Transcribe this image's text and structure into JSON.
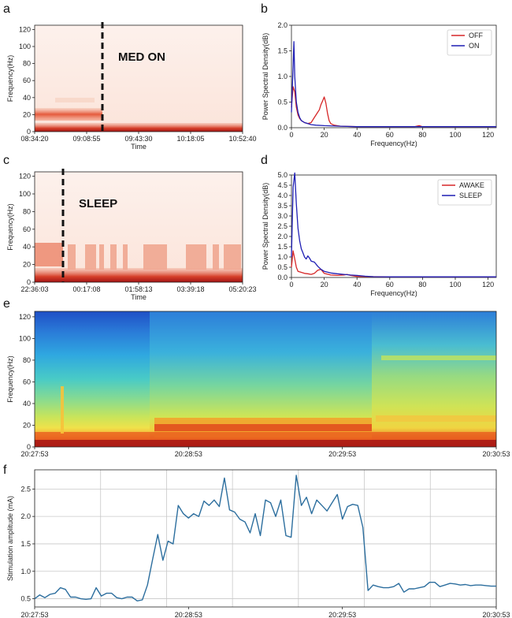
{
  "panels": {
    "a": {
      "label": "a",
      "type": "spectrogram",
      "annotation": "MED ON",
      "xlabel": "Time",
      "ylabel": "Frequency(Hz)",
      "xticks": [
        "08:34:20",
        "09:08:55",
        "09:43:30",
        "10:18:05",
        "10:52:40"
      ],
      "yticks": [
        0,
        20,
        40,
        60,
        80,
        100,
        120
      ],
      "ylim": [
        0,
        125
      ],
      "event_time_fraction": 0.33,
      "colormap": "reds"
    },
    "b": {
      "label": "b",
      "chart_data": {
        "type": "line",
        "xlabel": "Frequency(Hz)",
        "ylabel": "Power Spectral Density(dB)",
        "xlim": [
          0,
          125
        ],
        "ylim": [
          0,
          2.0
        ],
        "xticks": [
          0,
          20,
          40,
          60,
          80,
          100,
          120
        ],
        "yticks": [
          "0.0",
          "0.5",
          "1.0",
          "1.5",
          "2.0"
        ],
        "legend_position": "top-right",
        "series": [
          {
            "name": "OFF",
            "color": "#d62728",
            "x": [
              0,
              1,
              2,
              3,
              4,
              5,
              6,
              8,
              10,
              12,
              14,
              16,
              17,
              18,
              19,
              20,
              21,
              22,
              23,
              24,
              26,
              30,
              40,
              50,
              60,
              70,
              75,
              78,
              80,
              90,
              100,
              110,
              125
            ],
            "y": [
              0.4,
              0.8,
              0.7,
              0.4,
              0.25,
              0.18,
              0.14,
              0.1,
              0.08,
              0.1,
              0.2,
              0.3,
              0.35,
              0.45,
              0.52,
              0.6,
              0.48,
              0.28,
              0.14,
              0.08,
              0.05,
              0.03,
              0.02,
              0.02,
              0.02,
              0.02,
              0.02,
              0.04,
              0.02,
              0.02,
              0.02,
              0.02,
              0.02
            ]
          },
          {
            "name": "ON",
            "color": "#1f1fb4",
            "x": [
              0,
              1,
              1.5,
              2,
              3,
              4,
              5,
              6,
              8,
              10,
              12,
              15,
              20,
              30,
              40,
              60,
              80,
              100,
              125
            ],
            "y": [
              0.3,
              1.2,
              1.68,
              1.0,
              0.5,
              0.3,
              0.2,
              0.14,
              0.1,
              0.08,
              0.06,
              0.05,
              0.04,
              0.03,
              0.02,
              0.02,
              0.02,
              0.02,
              0.02
            ]
          }
        ]
      }
    },
    "c": {
      "label": "c",
      "type": "spectrogram",
      "annotation": "SLEEP",
      "xlabel": "Time",
      "ylabel": "Frequency(Hz)",
      "xticks": [
        "22:36:03",
        "00:17:08",
        "01:58:13",
        "03:39:18",
        "05:20:23"
      ],
      "yticks": [
        0,
        20,
        40,
        60,
        80,
        100,
        120
      ],
      "ylim": [
        0,
        125
      ],
      "event_time_fraction": 0.13,
      "colormap": "reds"
    },
    "d": {
      "label": "d",
      "chart_data": {
        "type": "line",
        "xlabel": "Frequency(Hz)",
        "ylabel": "Power Spectral Density(dB)",
        "xlim": [
          0,
          125
        ],
        "ylim": [
          0,
          5.0
        ],
        "xticks": [
          0,
          20,
          40,
          60,
          80,
          100,
          120
        ],
        "yticks": [
          "0.0",
          "0.5",
          "1.0",
          "1.5",
          "2.0",
          "2.5",
          "3.0",
          "3.5",
          "4.0",
          "4.5",
          "5.0"
        ],
        "legend_position": "top-right",
        "series": [
          {
            "name": "AWAKE",
            "color": "#d62728",
            "x": [
              0,
              1,
              2,
              3,
              4,
              6,
              8,
              10,
              12,
              14,
              16,
              18,
              20,
              24,
              28,
              32,
              34,
              36,
              40,
              50,
              60,
              80,
              100,
              125
            ],
            "y": [
              0.5,
              1.3,
              0.9,
              0.5,
              0.3,
              0.25,
              0.2,
              0.18,
              0.15,
              0.2,
              0.35,
              0.4,
              0.2,
              0.12,
              0.1,
              0.12,
              0.15,
              0.1,
              0.05,
              0.04,
              0.03,
              0.03,
              0.03,
              0.03
            ]
          },
          {
            "name": "SLEEP",
            "color": "#1f1fb4",
            "x": [
              0,
              1,
              2,
              3,
              4,
              5,
              6,
              7,
              8,
              9,
              10,
              11,
              12,
              14,
              16,
              18,
              20,
              24,
              28,
              32,
              36,
              40,
              45,
              50,
              60,
              80,
              100,
              125
            ],
            "y": [
              1.0,
              4.4,
              5.1,
              3.6,
              2.4,
              1.8,
              1.4,
              1.2,
              1.0,
              0.9,
              1.05,
              0.95,
              0.8,
              0.75,
              0.55,
              0.4,
              0.3,
              0.22,
              0.18,
              0.15,
              0.12,
              0.1,
              0.06,
              0.04,
              0.03,
              0.03,
              0.03,
              0.03
            ]
          }
        ]
      }
    },
    "e": {
      "label": "e",
      "type": "spectrogram",
      "ylabel": "Frequency(Hz)",
      "xticks": [
        "20:27:53",
        "20:28:53",
        "20:29:53",
        "20:30:53"
      ],
      "yticks": [
        0,
        20,
        40,
        60,
        80,
        100,
        120
      ],
      "ylim": [
        0,
        125
      ],
      "colormap": "jet"
    },
    "f": {
      "label": "f",
      "chart_data": {
        "type": "line",
        "ylabel": "Stimulation amplitude (mA)",
        "xticks": [
          "20:27:53",
          "20:28:53",
          "20:29:53",
          "20:30:53"
        ],
        "yticks": [
          "0.5",
          "1.0",
          "1.5",
          "2.0",
          "2.5"
        ],
        "ylim": [
          0.35,
          2.85
        ],
        "xlim": [
          0,
          180
        ],
        "grid": true,
        "series": [
          {
            "name": "",
            "color": "#2c6e9e",
            "x": [
              0,
              2,
              4,
              6,
              8,
              10,
              12,
              14,
              16,
              18,
              20,
              22,
              24,
              26,
              28,
              30,
              32,
              34,
              36,
              38,
              40,
              42,
              44,
              46,
              48,
              50,
              52,
              54,
              56,
              58,
              60,
              62,
              64,
              66,
              68,
              70,
              72,
              74,
              76,
              78,
              80,
              82,
              84,
              86,
              88,
              90,
              92,
              94,
              96,
              98,
              100,
              102,
              104,
              106,
              108,
              110,
              112,
              114,
              116,
              118,
              120,
              122,
              124,
              126,
              128,
              130,
              132,
              134,
              136,
              138,
              140,
              142,
              144,
              146,
              148,
              150,
              152,
              154,
              156,
              158,
              160,
              162,
              164,
              166,
              168,
              170,
              172,
              174,
              176,
              178,
              180
            ],
            "y": [
              0.5,
              0.57,
              0.52,
              0.58,
              0.6,
              0.7,
              0.67,
              0.53,
              0.53,
              0.5,
              0.49,
              0.5,
              0.7,
              0.55,
              0.6,
              0.6,
              0.52,
              0.5,
              0.53,
              0.53,
              0.46,
              0.48,
              0.75,
              1.22,
              1.67,
              1.2,
              1.55,
              1.5,
              2.2,
              2.05,
              1.97,
              2.05,
              2.0,
              2.28,
              2.2,
              2.3,
              2.18,
              2.7,
              2.12,
              2.08,
              1.95,
              1.9,
              1.7,
              2.05,
              1.65,
              2.3,
              2.25,
              2.0,
              2.3,
              1.65,
              1.62,
              2.75,
              2.2,
              2.35,
              2.05,
              2.3,
              2.2,
              2.1,
              2.25,
              2.4,
              1.95,
              2.18,
              2.22,
              2.2,
              1.8,
              0.65,
              0.75,
              0.72,
              0.7,
              0.7,
              0.72,
              0.78,
              0.62,
              0.68,
              0.68,
              0.7,
              0.72,
              0.8,
              0.8,
              0.72,
              0.75,
              0.78,
              0.77,
              0.75,
              0.76,
              0.74,
              0.75,
              0.75,
              0.74,
              0.73,
              0.73
            ]
          }
        ]
      }
    }
  }
}
